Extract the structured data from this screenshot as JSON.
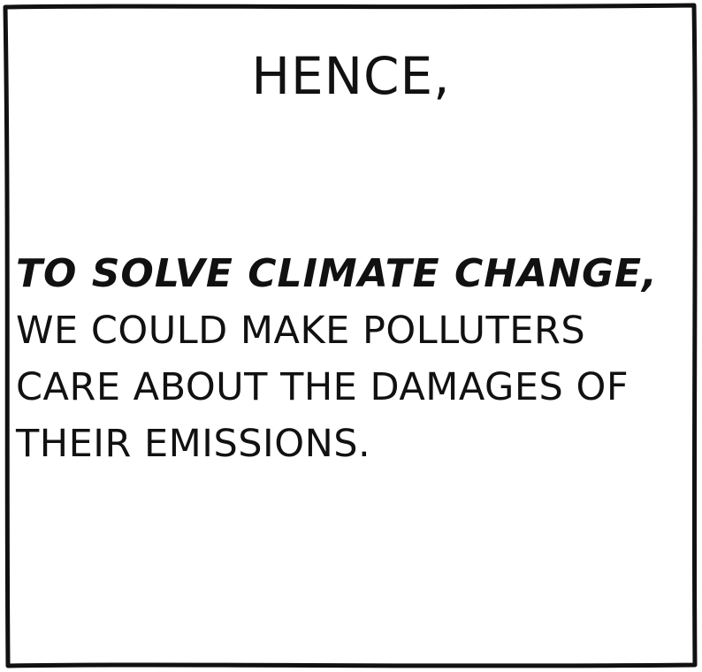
{
  "panel": {
    "heading": "HENCE,",
    "emphasis": "TO SOLVE CLIMATE CHANGE,",
    "lines": [
      "WE COULD MAKE POLLUTERS",
      "CARE ABOUT THE DAMAGES OF",
      "THEIR EMISSIONS."
    ]
  }
}
